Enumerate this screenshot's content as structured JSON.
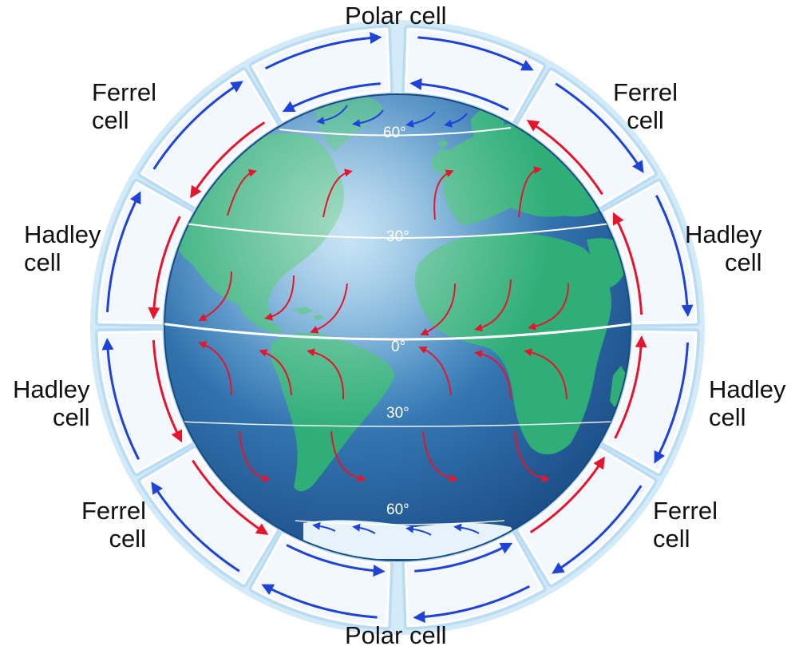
{
  "labels": {
    "polar_top": "Polar cell",
    "polar_bottom": "Polar cell",
    "ferrel_nw": [
      "Ferrel",
      "cell"
    ],
    "ferrel_ne": [
      "Ferrel",
      "cell"
    ],
    "hadley_nw": [
      "Hadley",
      "cell"
    ],
    "hadley_ne": [
      "Hadley",
      "cell"
    ],
    "hadley_sw": [
      "Hadley",
      "cell"
    ],
    "hadley_se": [
      "Hadley",
      "cell"
    ],
    "ferrel_sw": [
      "Ferrel",
      "cell"
    ],
    "ferrel_se": [
      "Ferrel",
      "cell"
    ]
  },
  "latitudes": {
    "north_60": "60°",
    "north_30": "30°",
    "equator": "0°",
    "south_30": "30°",
    "south_60": "60°"
  },
  "colors": {
    "ocean": "#2f6fae",
    "land": "#2fae78",
    "cell_fill": "#f2f8fd",
    "cell_glow": "#b9dcf3",
    "cold_arrow": "#1f43d6",
    "warm_arrow": "#e5152b"
  }
}
